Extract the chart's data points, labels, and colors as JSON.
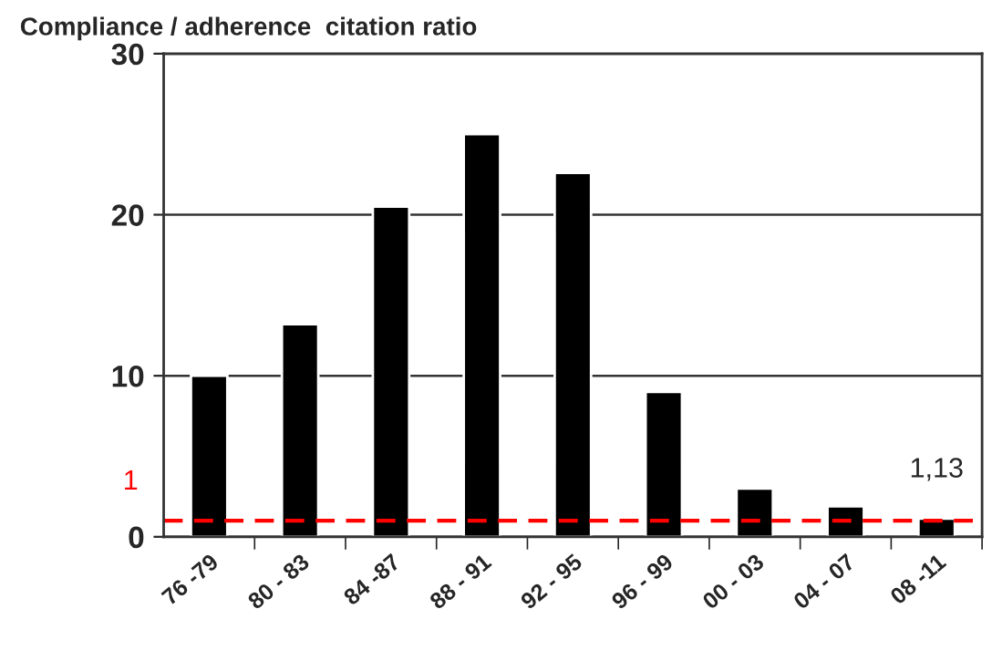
{
  "chart_data": {
    "type": "bar",
    "title": "Compliance / adherence  citation ratio",
    "categories": [
      "76 -79",
      "80 - 83",
      "84 -87",
      "88 - 91",
      "92 - 95",
      "96 - 99",
      "00 - 03",
      "04 - 07",
      "08 -11"
    ],
    "values": [
      10,
      13.2,
      20.5,
      25,
      22.6,
      9,
      3,
      1.9,
      1.13
    ],
    "value_labels": [
      null,
      null,
      null,
      null,
      null,
      null,
      null,
      null,
      "1,13"
    ],
    "color": "#000000",
    "ylim": [
      0,
      30
    ],
    "yticks": [
      0,
      10,
      20,
      30
    ],
    "grid": "y",
    "ref_lines": [
      {
        "axis": "y",
        "value": 1,
        "label": "1",
        "color": "#ff0000",
        "line_style": "dashed"
      }
    ]
  }
}
